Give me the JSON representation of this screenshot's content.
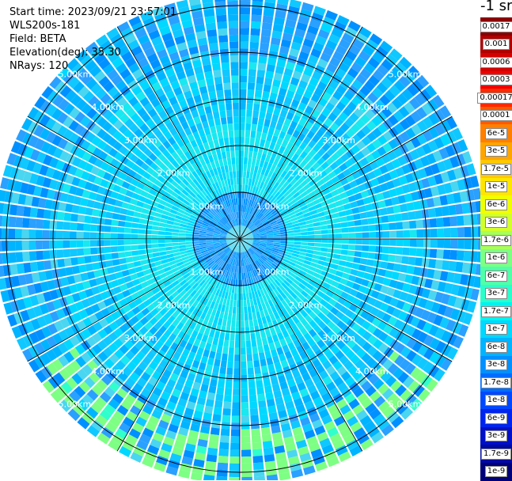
{
  "header": {
    "start_time": "Start time: 2023/09/21 23:57:01",
    "instrument": "WLS200s-181",
    "field": "Field: BETA",
    "elevation": "Elevation(deg): 35.30",
    "nrays": "NRays: 120"
  },
  "colorbar": {
    "title": "-1 sr",
    "labels": [
      "0.0017",
      "0.001",
      "0.0006",
      "0.0003",
      "0.00017",
      "0.0001",
      "6e-5",
      "3e-5",
      "1.7e-5",
      "1e-5",
      "6e-6",
      "3e-6",
      "1.7e-6",
      "1e-6",
      "6e-7",
      "3e-7",
      "1.7e-7",
      "1e-7",
      "6e-8",
      "3e-8",
      "1.7e-8",
      "1e-8",
      "6e-9",
      "3e-9",
      "1.7e-9",
      "1e-9"
    ],
    "colors": [
      "#8b0000",
      "#b00000",
      "#d40000",
      "#f00000",
      "#ff2a00",
      "#ff5a00",
      "#ff8000",
      "#ffa500",
      "#ffc800",
      "#ffe600",
      "#f0ff00",
      "#d2ff2a",
      "#a8ff5a",
      "#7dff84",
      "#50ffa8",
      "#2affcc",
      "#00f5f0",
      "#00d8ff",
      "#00b4ff",
      "#0090ff",
      "#006cff",
      "#0048ff",
      "#0024f0",
      "#0010c8",
      "#000aa0",
      "#000078"
    ]
  },
  "chart_data": {
    "type": "ppi",
    "field": "BETA",
    "units": "sr-1",
    "nrays": 120,
    "elevation_deg": 35.3,
    "ranges_km": [
      1,
      2,
      3,
      4,
      5
    ],
    "range_labels": [
      "1.00km",
      "2.00km",
      "3.00km",
      "4.00km",
      "5.00km"
    ],
    "max_range_km": 5.25,
    "spoke_angles_deg": [
      0,
      30,
      60,
      90,
      120,
      150,
      180,
      210,
      240,
      270,
      300,
      330
    ],
    "colorbar_scale": "log",
    "colorbar_range": [
      1e-09,
      0.0017
    ]
  }
}
